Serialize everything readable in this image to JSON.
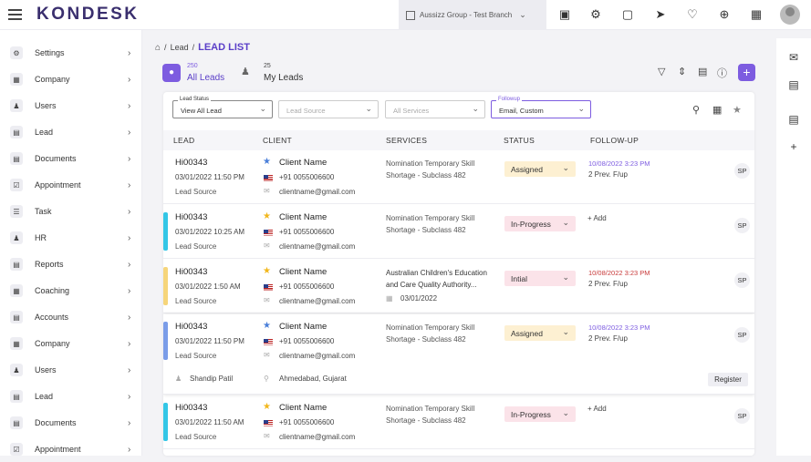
{
  "header": {
    "logo": "KONDESK",
    "branch": "Aussizz Group - Test Branch",
    "icons": [
      "briefcase-icon",
      "bug-icon",
      "note-icon",
      "megaphone-icon",
      "bell-icon",
      "plus-circle-icon",
      "grid-icon"
    ]
  },
  "sidebar": {
    "items": [
      {
        "label": "Settings",
        "icon": "gear-icon"
      },
      {
        "label": "Company",
        "icon": "building-icon"
      },
      {
        "label": "Users",
        "icon": "users-icon"
      },
      {
        "label": "Lead",
        "icon": "lead-icon"
      },
      {
        "label": "Documents",
        "icon": "documents-icon"
      },
      {
        "label": "Appointment",
        "icon": "calendar-icon"
      },
      {
        "label": "Task",
        "icon": "task-icon"
      },
      {
        "label": "HR",
        "icon": "hr-icon"
      },
      {
        "label": "Reports",
        "icon": "reports-icon"
      },
      {
        "label": "Coaching",
        "icon": "coaching-icon"
      },
      {
        "label": "Accounts",
        "icon": "accounts-icon"
      },
      {
        "label": "Company",
        "icon": "building-icon"
      },
      {
        "label": "Users",
        "icon": "users-icon"
      },
      {
        "label": "Lead",
        "icon": "lead-icon"
      },
      {
        "label": "Documents",
        "icon": "documents-icon"
      },
      {
        "label": "Appointment",
        "icon": "calendar-icon"
      }
    ]
  },
  "breadcrumb": {
    "sep1": "/",
    "parent": "Lead",
    "sep2": "/",
    "current": "LEAD LIST"
  },
  "tabs": {
    "all": {
      "count": "250",
      "label": "All Leads"
    },
    "mine": {
      "count": "25",
      "label": "My Leads"
    }
  },
  "filters": {
    "lead_status": {
      "legend": "Lead Status",
      "value": "View All Lead"
    },
    "lead_source": {
      "placeholder": "Lead Source"
    },
    "services": {
      "placeholder": "All Services"
    },
    "followup": {
      "legend": "Followup",
      "value": "Email, Custom"
    }
  },
  "table": {
    "columns": [
      "LEAD",
      "CLIENT",
      "SERVICES",
      "STATUS",
      "FOLLOW-UP"
    ],
    "rows": [
      {
        "id": "Hi00343",
        "date": "03/01/2022 11:50 PM",
        "source": "Lead Source",
        "star": "blue",
        "client": "Client Name",
        "phone": "+91 0055006600",
        "email": "clientname@gmail.com",
        "svc1": "Nomination Temporary Skill",
        "svc2": "Shortage - Subclass 482",
        "status": "Assigned",
        "status_color": "#fdf0d2",
        "fu_date": "10/08/2022 3:23 PM",
        "fu_color": "purple",
        "fu_prev": "2 Prev. F/up",
        "bar": "",
        "avatar": "SP"
      },
      {
        "id": "Hi00343",
        "date": "03/01/2022 10:25 AM",
        "source": "Lead Source",
        "star": "gold",
        "client": "Client Name",
        "phone": "+91 0055006600",
        "email": "clientname@gmail.com",
        "svc1": "Nomination Temporary Skill",
        "svc2": "Shortage - Subclass 482",
        "status": "In-Progress",
        "status_color": "#fbe3e9",
        "fu_add": "+ Add",
        "bar": "#33c6e6",
        "avatar": "SP"
      },
      {
        "id": "Hi00343",
        "date": "03/01/2022 1:50 AM",
        "source": "Lead Source",
        "star": "gold",
        "client": "Client Name",
        "phone": "+91 0055006600",
        "email": "clientname@gmail.com",
        "svc1": "Australian Children's Education",
        "svc2": "and Care Quality Authority...",
        "svc_date": "03/01/2022",
        "status": "Intial",
        "status_color": "#fbe3e9",
        "fu_date": "10/08/2022 3:23 PM",
        "fu_color": "red",
        "fu_prev": "2 Prev. F/up",
        "bar": "#f6d57a",
        "avatar": "SP"
      },
      {
        "id": "Hi00343",
        "date": "03/01/2022 11:50 PM",
        "source": "Lead Source",
        "star": "blue",
        "client": "Client Name",
        "phone": "+91 0055006600",
        "email": "clientname@gmail.com",
        "svc1": "Nomination Temporary Skill",
        "svc2": "Shortage - Subclass 482",
        "status": "Assigned",
        "status_color": "#fdf0d2",
        "fu_date": "10/08/2022 3:23 PM",
        "fu_color": "purple",
        "fu_prev": "2 Prev. F/up",
        "bar": "#7a9ce8",
        "avatar": "SP",
        "expanded": {
          "person": "Shandip Patil",
          "location": "Ahmedabad, Gujarat",
          "button": "Register"
        }
      },
      {
        "id": "Hi00343",
        "date": "03/01/2022 11:50 AM",
        "source": "Lead Source",
        "star": "gold",
        "client": "Client Name",
        "phone": "+91 0055006600",
        "email": "clientname@gmail.com",
        "svc1": "Nomination Temporary Skill",
        "svc2": "Shortage - Subclass 482",
        "status": "In-Progress",
        "status_color": "#fbe3e9",
        "fu_add": "+ Add",
        "bar": "#33c6e6",
        "avatar": "SP"
      }
    ]
  },
  "colors": {
    "accent": "#7d5ce0",
    "star_gold": "#f2b71c",
    "star_blue": "#4a7fd9"
  }
}
